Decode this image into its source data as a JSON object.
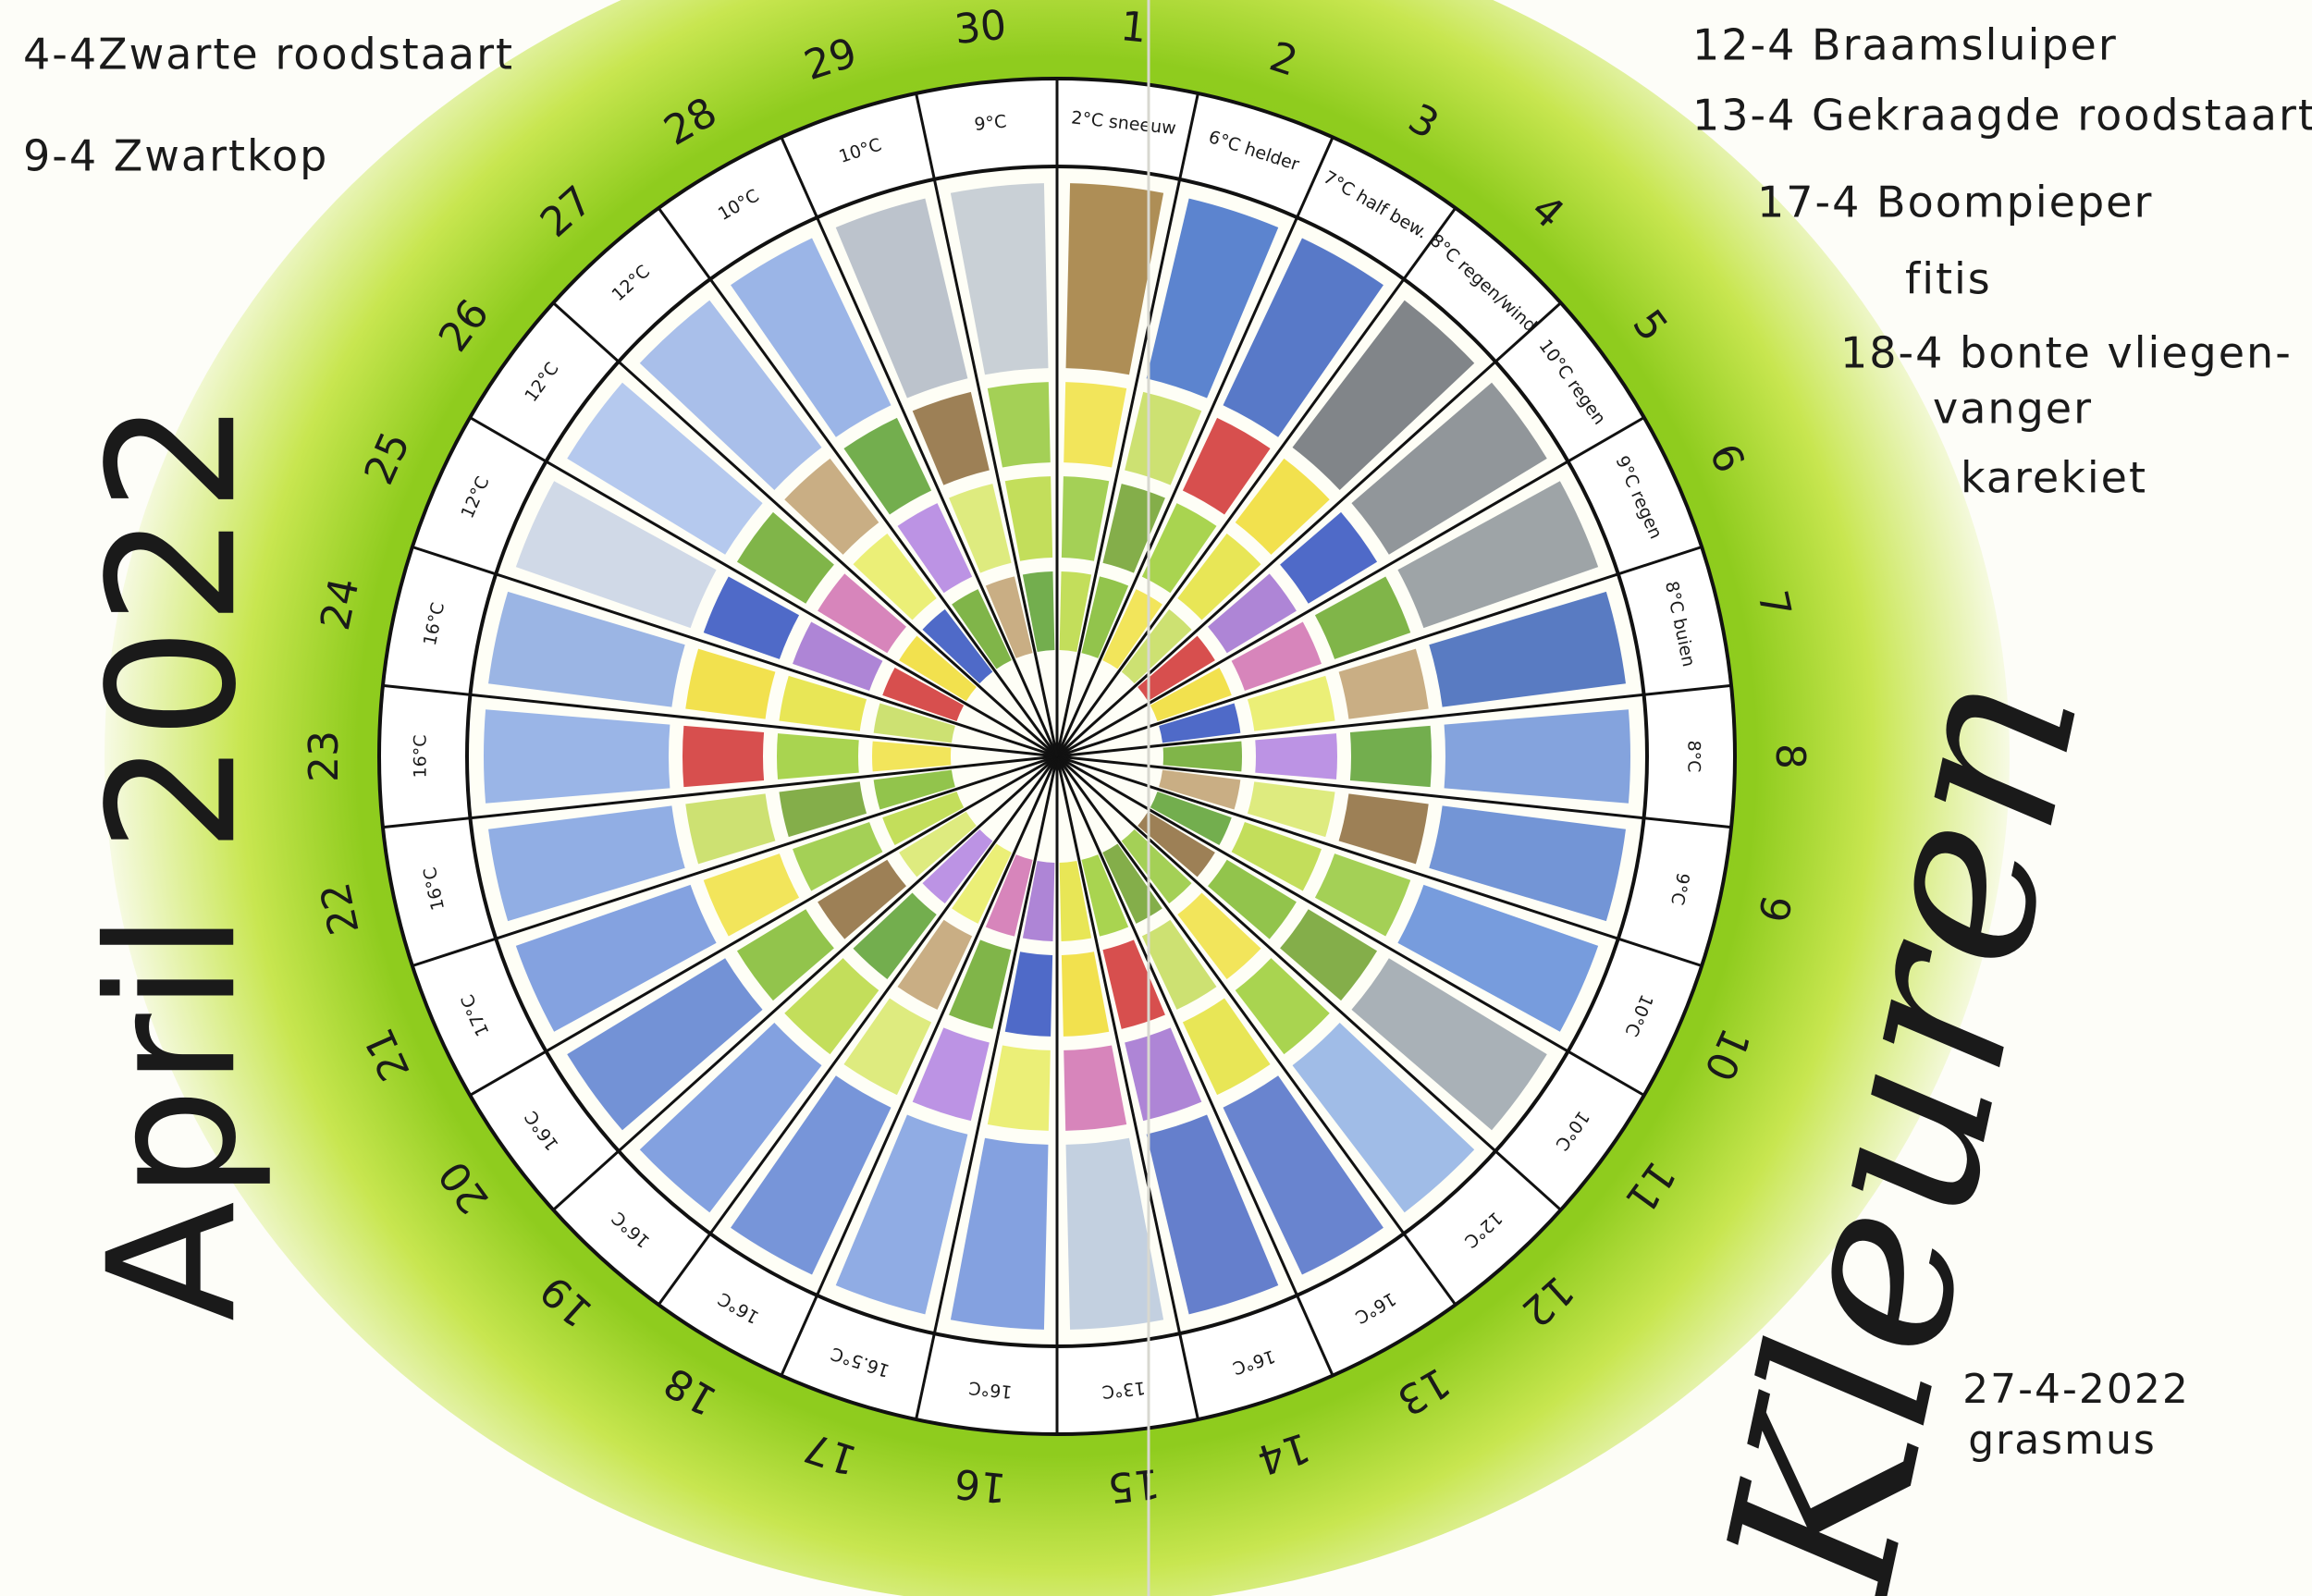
{
  "title": "April 2022",
  "heading": "Kleuren",
  "bird_notes_left": [
    "4-4Zwarte roodstaart",
    "9-4 Zwartkop"
  ],
  "bird_notes_right": [
    "12-4 Braamsluiper",
    "13-4 Gekraagde roodstaart",
    "17-4 Boompieper",
    "fitis",
    "18-4 bonte vliegen-",
    "vanger",
    "karekiet"
  ],
  "signature": {
    "date": "27-4-2022",
    "note": "grasmus"
  },
  "days": [
    {
      "label": "1",
      "weather": "2°C sneeuw"
    },
    {
      "label": "2",
      "weather": "6°C helder"
    },
    {
      "label": "3",
      "weather": "7°C half bew."
    },
    {
      "label": "4",
      "weather": "8°C regen/wind"
    },
    {
      "label": "5",
      "weather": "10°C regen"
    },
    {
      "label": "6",
      "weather": "9°C regen"
    },
    {
      "label": "7",
      "weather": "8°C buien"
    },
    {
      "label": "8",
      "weather": "8°C"
    },
    {
      "label": "9",
      "weather": "9°C"
    },
    {
      "label": "10",
      "weather": "10°C"
    },
    {
      "label": "11",
      "weather": "10°C"
    },
    {
      "label": "12",
      "weather": "12°C"
    },
    {
      "label": "13",
      "weather": "16°C"
    },
    {
      "label": "14",
      "weather": "16°C"
    },
    {
      "label": "15",
      "weather": "13°C"
    },
    {
      "label": "16",
      "weather": "16°C"
    },
    {
      "label": "17",
      "weather": "16.5°C"
    },
    {
      "label": "18",
      "weather": "16°C"
    },
    {
      "label": "19",
      "weather": "16°C"
    },
    {
      "label": "20",
      "weather": "16°C"
    },
    {
      "label": "21",
      "weather": "17°C"
    },
    {
      "label": "22",
      "weather": "16°C"
    },
    {
      "label": "23",
      "weather": "16°C"
    },
    {
      "label": "24",
      "weather": "16°C"
    },
    {
      "label": "25",
      "weather": "12°C"
    },
    {
      "label": "26",
      "weather": "12°C"
    },
    {
      "label": "27",
      "weather": "12°C"
    },
    {
      "label": "28",
      "weather": "10°C"
    },
    {
      "label": "29",
      "weather": "10°C"
    },
    {
      "label": "30",
      "weather": "9°C"
    }
  ]
}
